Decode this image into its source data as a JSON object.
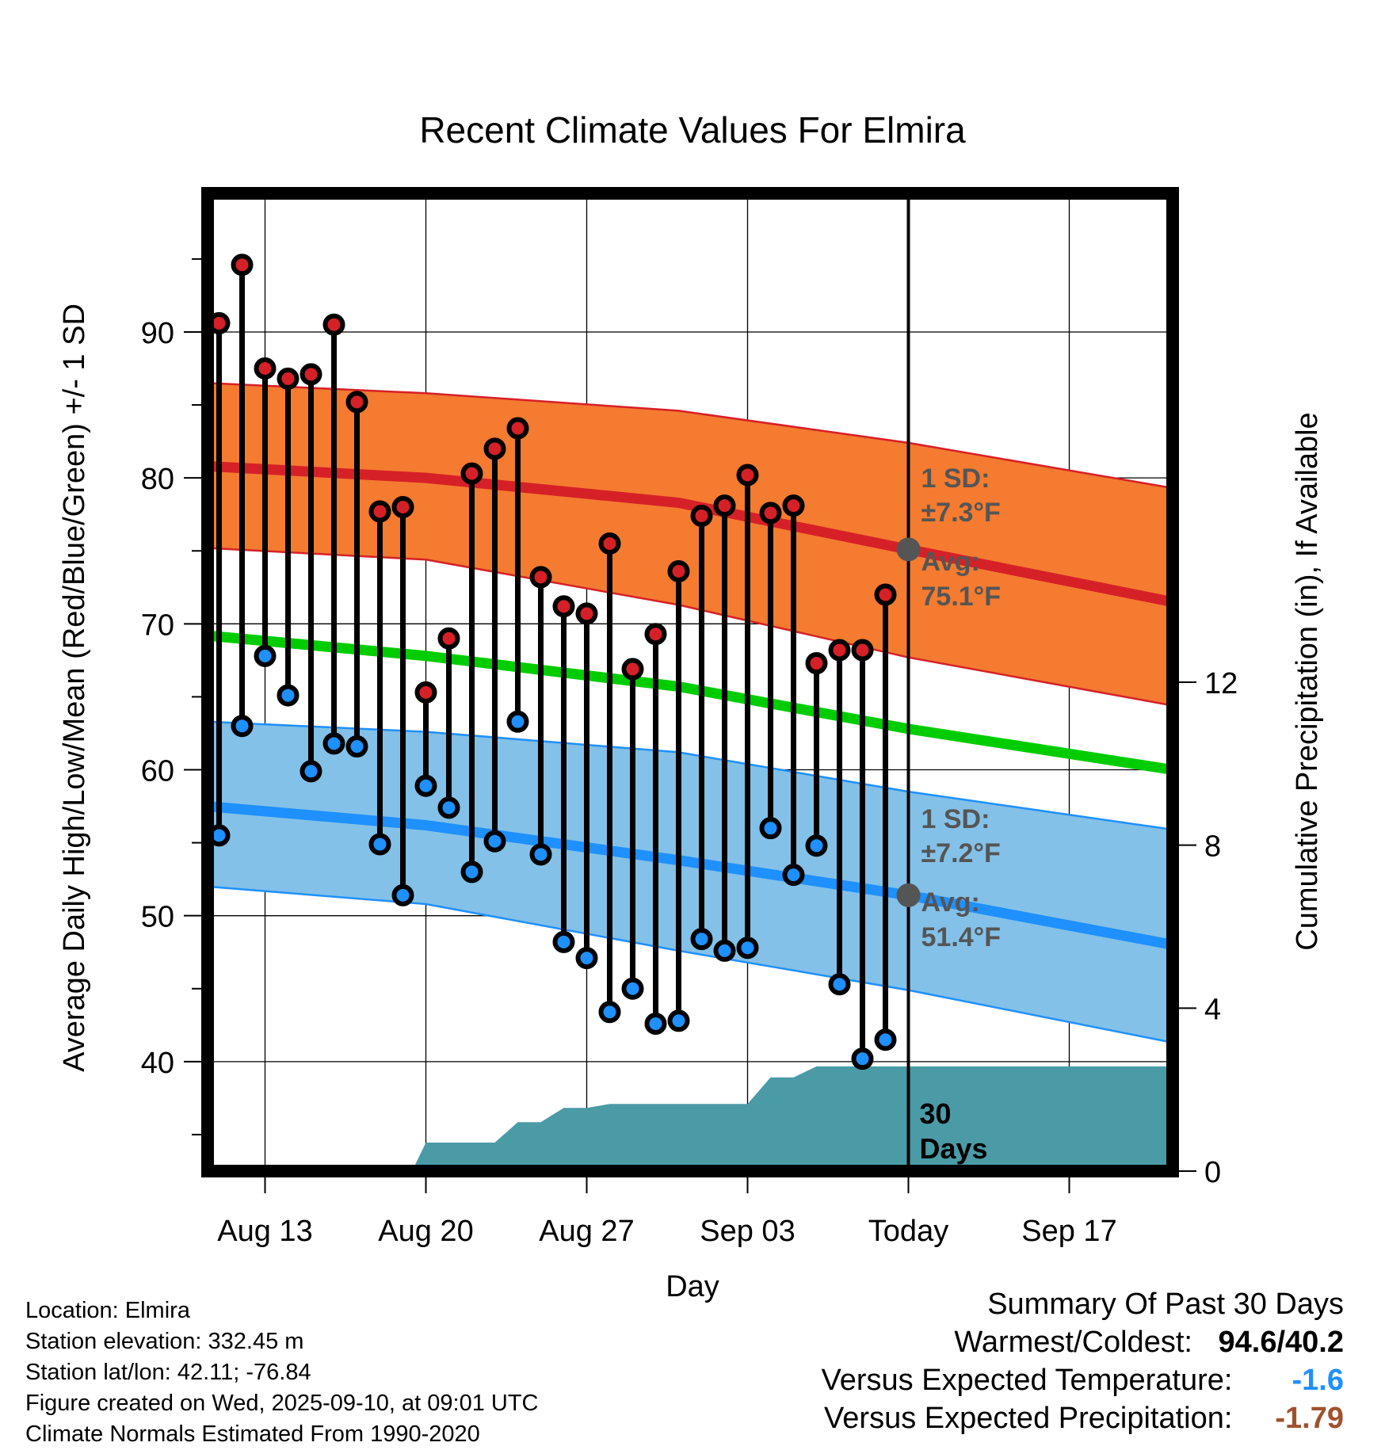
{
  "colors": {
    "high": "#d62027",
    "low": "#1e90ff",
    "mean": "#00cc00",
    "high_band": "#f47b30",
    "low_band": "#83c1e8",
    "precip": "#4a9ba6",
    "annotation": "#555555",
    "temp_departure": "#1e90ff",
    "precip_departure": "#a0522d"
  },
  "chart_data": {
    "type": "line",
    "title": "Recent Climate Values For Elmira",
    "xlabel": "Day",
    "ylabel": "Average Daily High/Low/Mean (Red/Blue/Green) +/- 1 SD",
    "y2label": "Cumulative Precipitation (in), If Available",
    "xlim": [
      -0.5,
      41.5
    ],
    "ylim": [
      32.5,
      99.5
    ],
    "y2lim": [
      0,
      24
    ],
    "x_ticks": [
      {
        "x": 2,
        "label": "Aug 13"
      },
      {
        "x": 9,
        "label": "Aug 20"
      },
      {
        "x": 16,
        "label": "Aug 27"
      },
      {
        "x": 23,
        "label": "Sep 03"
      },
      {
        "x": 30,
        "label": "Today"
      },
      {
        "x": 37,
        "label": "Sep 17"
      }
    ],
    "y_ticks": [
      40,
      50,
      60,
      70,
      80,
      90
    ],
    "y2_ticks": [
      0,
      4,
      8,
      12
    ],
    "today_x": 30,
    "days": [
      0,
      1,
      2,
      3,
      4,
      5,
      6,
      7,
      8,
      9,
      10,
      11,
      12,
      13,
      14,
      15,
      16,
      17,
      18,
      19,
      20,
      21,
      22,
      23,
      24,
      25,
      26,
      27,
      28,
      29
    ],
    "highs": [
      90.6,
      94.6,
      87.5,
      86.8,
      87.1,
      90.5,
      85.2,
      77.7,
      78.0,
      65.3,
      69.0,
      80.3,
      82.0,
      83.4,
      73.2,
      71.2,
      70.7,
      75.5,
      66.9,
      69.3,
      73.6,
      77.4,
      78.1,
      80.2,
      77.6,
      78.1,
      67.3,
      68.2,
      68.2,
      72.0
    ],
    "lows": [
      55.5,
      63.0,
      67.8,
      65.1,
      59.9,
      61.8,
      61.6,
      54.9,
      51.4,
      58.9,
      57.4,
      53.0,
      55.1,
      63.3,
      54.2,
      48.2,
      47.1,
      43.4,
      45.0,
      42.6,
      42.8,
      48.4,
      47.6,
      47.8,
      56.0,
      52.8,
      54.8,
      45.3,
      40.2,
      41.5
    ],
    "normals_x": [
      -0.5,
      9,
      20,
      30,
      41.5
    ],
    "normal_high": [
      80.8,
      80.0,
      78.3,
      75.1,
      71.5
    ],
    "normal_high_upper": [
      86.5,
      85.8,
      84.6,
      82.4,
      79.3
    ],
    "normal_high_lower": [
      75.2,
      74.4,
      71.3,
      67.7,
      64.4
    ],
    "normal_mean": [
      69.2,
      67.8,
      65.7,
      62.8,
      60.0
    ],
    "normal_low": [
      57.5,
      56.2,
      53.8,
      51.4,
      48.0
    ],
    "normal_low_upper": [
      63.3,
      62.6,
      61.2,
      58.5,
      55.9
    ],
    "normal_low_lower": [
      52.0,
      50.8,
      47.6,
      44.9,
      41.3
    ],
    "precip_x": [
      -0.5,
      8.4,
      9.0,
      12.0,
      13.0,
      14.0,
      15.0,
      16.0,
      17.0,
      18.0,
      22.0,
      23.0,
      24.0,
      25.0,
      26.0,
      41.5
    ],
    "precip_cum": [
      0,
      0,
      0.7,
      0.7,
      1.2,
      1.2,
      1.55,
      1.55,
      1.65,
      1.65,
      1.65,
      1.65,
      2.3,
      2.3,
      2.57,
      2.57
    ],
    "annotations": {
      "high_sd": "1 SD:",
      "high_sd_value": "±7.3°F",
      "high_avg": "Avg:",
      "high_avg_value": "75.1°F",
      "low_sd": "1 SD:",
      "low_sd_value": "±7.2°F",
      "low_avg": "Avg:",
      "low_avg_value": "51.4°F",
      "days_number": "30",
      "days_word": "Days"
    },
    "today_high_avg": 75.1,
    "today_low_avg": 51.4
  },
  "info": {
    "location": "Location: Elmira",
    "elevation": "Station elevation: 332.45 m",
    "latlon": "Station lat/lon: 42.11; -76.84",
    "created": "Figure created on Wed, 2025-09-10, at 09:01 UTC",
    "normals": "Climate Normals Estimated From 1990-2020"
  },
  "summary": {
    "title": "Summary Of Past 30 Days",
    "warmest_label": "Warmest/Coldest:",
    "warmest_value": "94.6/40.2",
    "temp_label": "Versus Expected Temperature:",
    "temp_value": "-1.6",
    "precip_label": "Versus Expected Precipitation:",
    "precip_value": "-1.79"
  }
}
